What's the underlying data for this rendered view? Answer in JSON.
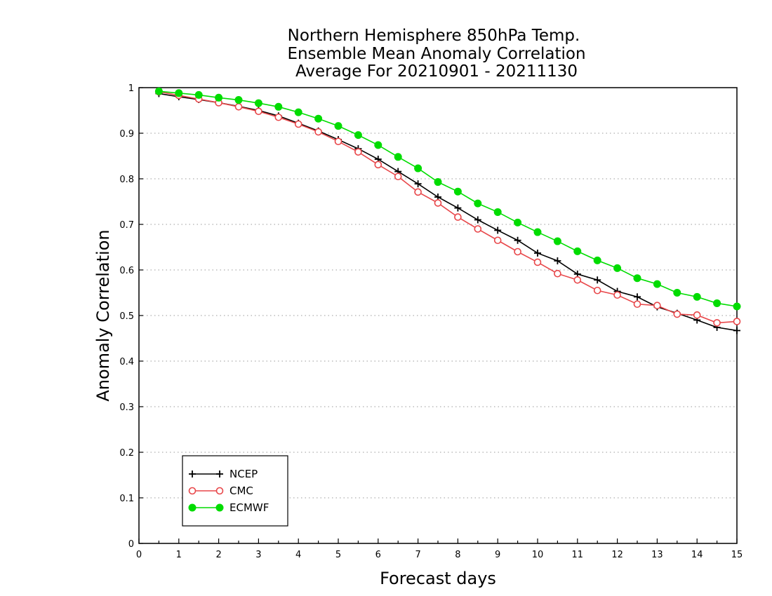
{
  "chart_data": {
    "type": "line",
    "title_lines": [
      "Northern Hemisphere 850hPa Temp.",
      "Ensemble Mean Anomaly Correlation",
      "Average For 20210901 - 20211130"
    ],
    "xlabel": "Forecast days",
    "ylabel": "Anomaly Correlation",
    "xlim": [
      0,
      15
    ],
    "ylim": [
      0,
      1
    ],
    "x_ticks": [
      "0",
      "1",
      "2",
      "3",
      "4",
      "5",
      "6",
      "7",
      "8",
      "9",
      "10",
      "11",
      "12",
      "13",
      "14",
      "15"
    ],
    "y_ticks": [
      "0",
      "0.1",
      "0.2",
      "0.3",
      "0.4",
      "0.5",
      "0.6",
      "0.7",
      "0.8",
      "0.9",
      "1"
    ],
    "grid": "horizontal-dotted",
    "legend_position": "bottom-left",
    "x": [
      0.5,
      1,
      1.5,
      2,
      2.5,
      3,
      3.5,
      4,
      4.5,
      5,
      5.5,
      6,
      6.5,
      7,
      7.5,
      8,
      8.5,
      9,
      9.5,
      10,
      10.5,
      11,
      11.5,
      12,
      12.5,
      13,
      13.5,
      14,
      14.5,
      15
    ],
    "series": [
      {
        "name": "NCEP",
        "color": "#000000",
        "marker": "plus",
        "values": [
          0.987,
          0.98,
          0.974,
          0.967,
          0.959,
          0.95,
          0.938,
          0.922,
          0.905,
          0.886,
          0.866,
          0.843,
          0.816,
          0.789,
          0.76,
          0.736,
          0.71,
          0.687,
          0.665,
          0.637,
          0.62,
          0.591,
          0.578,
          0.553,
          0.541,
          0.519,
          0.505,
          0.49,
          0.474,
          0.467
        ]
      },
      {
        "name": "CMC",
        "color": "#e8474a",
        "marker": "open-circle",
        "values": [
          0.991,
          0.983,
          0.975,
          0.967,
          0.958,
          0.948,
          0.935,
          0.92,
          0.903,
          0.882,
          0.859,
          0.831,
          0.805,
          0.771,
          0.747,
          0.716,
          0.69,
          0.665,
          0.64,
          0.617,
          0.592,
          0.578,
          0.555,
          0.545,
          0.525,
          0.522,
          0.503,
          0.501,
          0.484,
          0.487
        ]
      },
      {
        "name": "ECMWF",
        "color": "#00dc00",
        "marker": "filled-circle",
        "values": [
          0.992,
          0.988,
          0.984,
          0.978,
          0.973,
          0.966,
          0.958,
          0.946,
          0.932,
          0.916,
          0.896,
          0.874,
          0.848,
          0.823,
          0.793,
          0.772,
          0.746,
          0.727,
          0.704,
          0.683,
          0.663,
          0.641,
          0.621,
          0.604,
          0.582,
          0.569,
          0.55,
          0.541,
          0.527,
          0.52
        ]
      }
    ]
  }
}
